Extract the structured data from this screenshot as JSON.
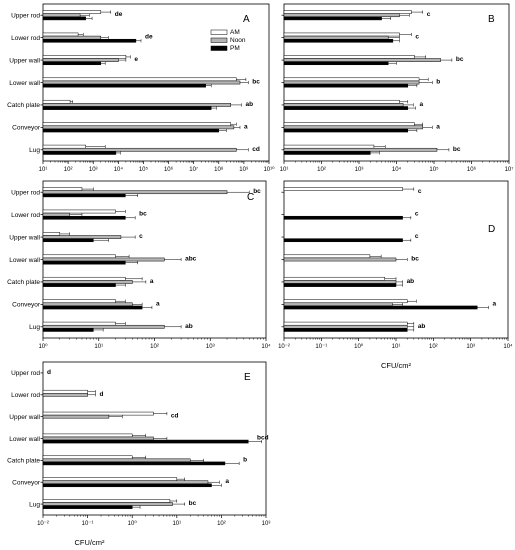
{
  "legend": {
    "entries": [
      {
        "label": "AM",
        "color": "#ffffff"
      },
      {
        "label": "Noon",
        "color": "#b4b4b4"
      },
      {
        "label": "PM",
        "color": "#000000"
      }
    ],
    "placement": "top-right of panel A"
  },
  "chart_data": [
    {
      "type": "bar",
      "orientation": "horizontal",
      "panel": "A",
      "log_scale": true,
      "xlim": [
        10,
        10000000000
      ],
      "tick_labels": [
        "10¹",
        "10²",
        "10³",
        "10⁴",
        "10⁵",
        "10⁶",
        "10⁷",
        "10⁸",
        "10⁹",
        "10¹⁰"
      ],
      "xlabel": "",
      "categories": [
        "Upper rod",
        "Lower rod",
        "Upper wall",
        "Lower wall",
        "Catch plate",
        "Conveyor",
        "Lug"
      ],
      "annotations": [
        "de",
        "de",
        "e",
        "bc",
        "ab",
        "a",
        "cd"
      ],
      "series": [
        {
          "name": "AM",
          "values": [
            2000,
            250,
            20000,
            500000000,
            120,
            300000000,
            500
          ],
          "errors": [
            5000,
            400,
            30000,
            1200000000,
            150,
            500000000,
            3000
          ]
        },
        {
          "name": "Noon",
          "values": [
            300,
            2000,
            10000,
            700000000,
            300000000,
            400000000,
            500000000
          ],
          "errors": [
            700,
            4000,
            20000,
            1500000000,
            800000000,
            700000000,
            1500000000
          ]
        },
        {
          "name": "PM",
          "values": [
            500,
            50000,
            2000,
            30000000,
            50000000,
            100000000,
            8000
          ],
          "errors": [
            900,
            80000,
            3000,
            50000000,
            80000000,
            200000000,
            12000
          ]
        }
      ]
    },
    {
      "type": "bar",
      "orientation": "horizontal",
      "panel": "B",
      "log_scale": true,
      "xlim": [
        10,
        10000000
      ],
      "tick_labels": [
        "10¹",
        "10²",
        "10³",
        "10⁴",
        "10⁵",
        "10⁶",
        "10⁷"
      ],
      "xlabel": "",
      "categories": [
        "Upper rod",
        "Lower rod",
        "Upper wall",
        "Lower wall",
        "Catch plate",
        "Conveyor",
        "Lug"
      ],
      "annotations": [
        "c",
        "c",
        "bc",
        "b",
        "a",
        "a",
        "bc"
      ],
      "series": [
        {
          "name": "AM",
          "values": [
            25000,
            12000,
            30000,
            40000,
            12000,
            30000,
            2500
          ],
          "errors": [
            50000,
            25000,
            60000,
            70000,
            20000,
            50000,
            5000
          ]
        },
        {
          "name": "Noon",
          "values": [
            12000,
            6000,
            150000,
            40000,
            15000,
            50000,
            120000
          ],
          "errors": [
            22000,
            12000,
            300000,
            90000,
            28000,
            90000,
            250000
          ]
        },
        {
          "name": "PM",
          "values": [
            4000,
            8000,
            6000,
            20000,
            20000,
            20000,
            2000
          ],
          "errors": [
            7000,
            12000,
            10000,
            35000,
            32000,
            35000,
            3500
          ]
        }
      ]
    },
    {
      "type": "bar",
      "orientation": "horizontal",
      "panel": "C",
      "log_scale": true,
      "xlim": [
        1,
        10000
      ],
      "tick_labels": [
        "10⁰",
        "10¹",
        "10²",
        "10³",
        "10⁴"
      ],
      "xlabel": "",
      "categories": [
        "Upper rod",
        "Lower rod",
        "Upper wall",
        "Lower wall",
        "Catch plate",
        "Conveyor",
        "Lug"
      ],
      "annotations": [
        "bc",
        "bc",
        "c",
        "abc",
        "a",
        "a",
        "ab"
      ],
      "series": [
        {
          "name": "AM",
          "values": [
            5,
            20,
            2,
            20,
            30,
            20,
            20
          ],
          "errors": [
            8,
            30,
            3,
            35,
            60,
            30,
            30
          ]
        },
        {
          "name": "Noon",
          "values": [
            2000,
            3,
            25,
            150,
            40,
            40,
            150
          ],
          "errors": [
            5000,
            5,
            45,
            300,
            70,
            60,
            300
          ]
        },
        {
          "name": "PM",
          "values": [
            30,
            30,
            8,
            30,
            20,
            60,
            8
          ],
          "errors": [
            50,
            45,
            15,
            50,
            30,
            90,
            12
          ]
        }
      ]
    },
    {
      "type": "bar",
      "orientation": "horizontal",
      "panel": "D",
      "log_scale": true,
      "xlim": [
        0.01,
        10000
      ],
      "tick_labels": [
        "10⁻²",
        "10⁻¹",
        "10⁰",
        "10¹",
        "10²",
        "10³",
        "10⁴"
      ],
      "xlabel": "CFU/cm²",
      "categories": [
        "Upper rod",
        "Lower rod",
        "Upper wall",
        "Lower wall",
        "Catch plate",
        "Conveyor",
        "Lug"
      ],
      "annotations": [
        "c",
        "c",
        "c",
        "bc",
        "ab",
        "a",
        "ab"
      ],
      "series": [
        {
          "name": "AM",
          "values": [
            15,
            null,
            null,
            2,
            5,
            20,
            20
          ],
          "errors": [
            30,
            null,
            null,
            4,
            10,
            35,
            30
          ]
        },
        {
          "name": "Noon",
          "values": [
            null,
            null,
            null,
            10,
            10,
            8,
            20
          ],
          "errors": [
            null,
            null,
            null,
            20,
            15,
            15,
            30
          ]
        },
        {
          "name": "PM",
          "values": [
            null,
            15,
            15,
            null,
            10,
            1500,
            20
          ],
          "errors": [
            null,
            25,
            25,
            null,
            15,
            3000,
            30
          ]
        }
      ]
    },
    {
      "type": "bar",
      "orientation": "horizontal",
      "panel": "E",
      "log_scale": true,
      "xlim": [
        0.01,
        1000
      ],
      "tick_labels": [
        "10⁻²",
        "10⁻¹",
        "10⁰",
        "10¹",
        "10²",
        "10³"
      ],
      "xlabel": "CFU/cm²",
      "categories": [
        "Upper rod",
        "Lower rod",
        "Upper wall",
        "Lower wall",
        "Catch plate",
        "Conveyor",
        "Lug"
      ],
      "annotations": [
        "d",
        "d",
        "cd",
        "bcd",
        "b",
        "a",
        "bc"
      ],
      "series": [
        {
          "name": "AM",
          "values": [
            null,
            0.1,
            3,
            1,
            1,
            10,
            7
          ],
          "errors": [
            null,
            0.15,
            6,
            2,
            2,
            15,
            10
          ]
        },
        {
          "name": "Noon",
          "values": [
            null,
            0.1,
            0.3,
            3,
            20,
            50,
            8
          ],
          "errors": [
            null,
            0.15,
            0.6,
            6,
            40,
            90,
            15
          ]
        },
        {
          "name": "PM",
          "values": [
            null,
            null,
            null,
            400,
            120,
            60,
            1
          ],
          "errors": [
            null,
            null,
            null,
            800,
            250,
            100,
            1.5
          ]
        }
      ]
    }
  ]
}
